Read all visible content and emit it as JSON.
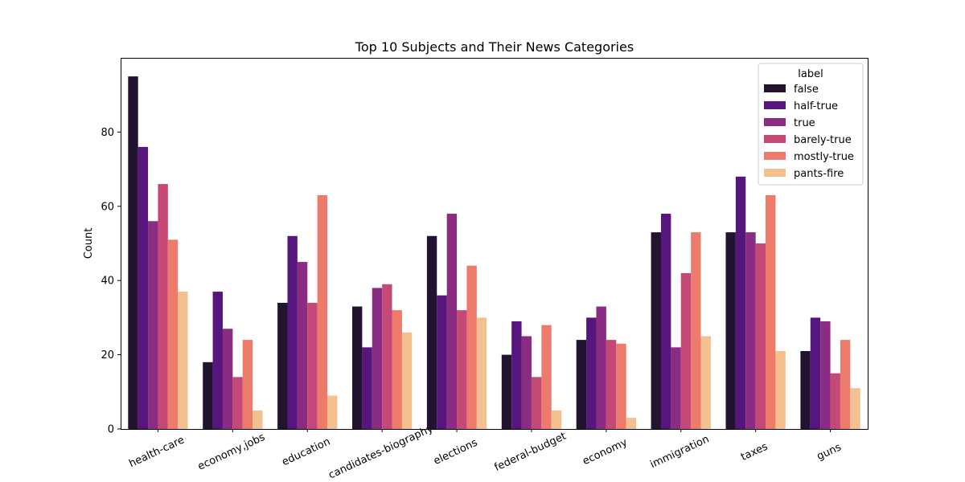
{
  "chart_data": {
    "type": "bar",
    "title": "Top 10 Subjects and Their News Categories",
    "xlabel": "",
    "ylabel": "Count",
    "ylim": [
      0,
      100
    ],
    "yticks": [
      0,
      20,
      40,
      60,
      80
    ],
    "grid": false,
    "legend": {
      "title": "label",
      "position": "top-right"
    },
    "categories": [
      "health-care",
      "economy,jobs",
      "education",
      "candidates-biography",
      "elections",
      "federal-budget",
      "economy",
      "immigration",
      "taxes",
      "guns"
    ],
    "series": [
      {
        "name": "false",
        "color": "#221331",
        "values": [
          95,
          18,
          34,
          33,
          52,
          20,
          24,
          53,
          53,
          21
        ]
      },
      {
        "name": "half-true",
        "color": "#57157e",
        "values": [
          76,
          37,
          52,
          22,
          36,
          29,
          30,
          58,
          68,
          30
        ]
      },
      {
        "name": "true",
        "color": "#8a2c82",
        "values": [
          56,
          27,
          45,
          38,
          58,
          25,
          33,
          22,
          53,
          29
        ]
      },
      {
        "name": "barely-true",
        "color": "#c54976",
        "values": [
          66,
          14,
          34,
          39,
          32,
          14,
          24,
          42,
          50,
          15
        ]
      },
      {
        "name": "mostly-true",
        "color": "#ec7b6b",
        "values": [
          51,
          24,
          63,
          32,
          44,
          28,
          23,
          53,
          63,
          24
        ]
      },
      {
        "name": "pants-fire",
        "color": "#f4c08f",
        "values": [
          37,
          5,
          9,
          26,
          30,
          5,
          3,
          25,
          21,
          11
        ]
      }
    ]
  }
}
